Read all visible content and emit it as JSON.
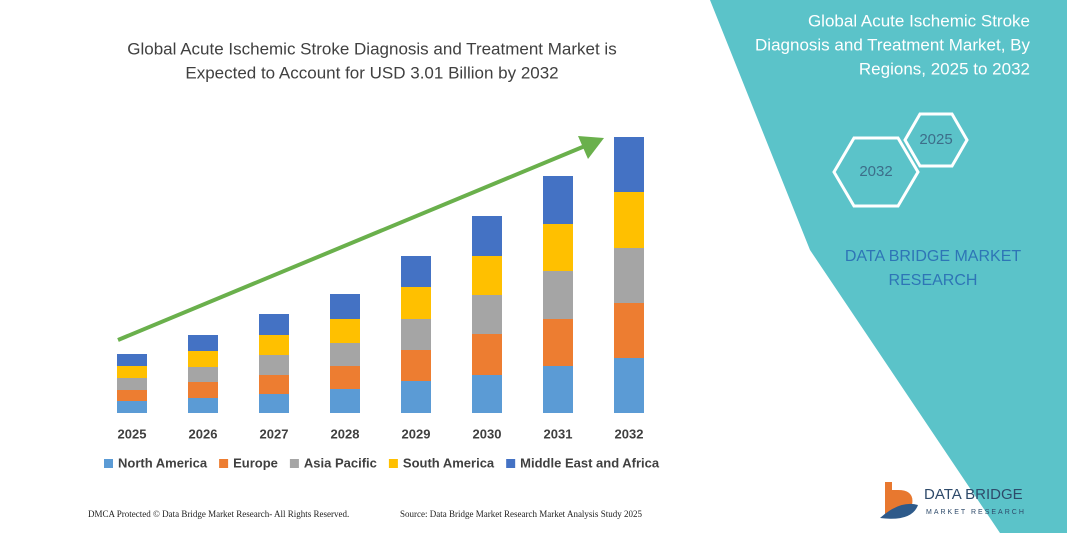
{
  "chart_data": {
    "type": "stacked-bar",
    "title": [
      "Global Acute Ischemic Stroke Diagnosis and Treatment Market is",
      "Expected to Account for USD 3.01 Billion by 2032"
    ],
    "categories": [
      "2025",
      "2026",
      "2027",
      "2028",
      "2029",
      "2030",
      "2031",
      "2032"
    ],
    "series": [
      {
        "name": "North America",
        "color": "#5b9bd5",
        "values": [
          12,
          15,
          19,
          24,
          32,
          38,
          47,
          55
        ]
      },
      {
        "name": "Europe",
        "color": "#ed7d31",
        "values": [
          11,
          16,
          19,
          23,
          31,
          41,
          47,
          55
        ]
      },
      {
        "name": "Asia Pacific",
        "color": "#a5a5a5",
        "values": [
          12,
          15,
          20,
          23,
          31,
          39,
          48,
          55
        ]
      },
      {
        "name": "South America",
        "color": "#ffc000",
        "values": [
          12,
          16,
          20,
          24,
          32,
          39,
          47,
          56
        ]
      },
      {
        "name": "Middle East and Africa",
        "color": "#4472c4",
        "values": [
          12,
          16,
          21,
          25,
          31,
          40,
          48,
          55
        ]
      }
    ]
  },
  "panel": {
    "title": [
      "Global Acute Ischemic Stroke",
      "Diagnosis and Treatment Market, By",
      "Regions, 2025 to 2032"
    ],
    "hexagons": [
      "2025",
      "2032"
    ],
    "brand": [
      "DATA BRIDGE MARKET",
      "RESEARCH"
    ]
  },
  "footer": {
    "left": "DMCA Protected © Data Bridge Market Research- All Rights Reserved.",
    "right": "Source: Data Bridge Market Research Market Analysis Study 2025"
  },
  "logo": {
    "name": "DATA BRIDGE",
    "tagline": "MARKET RESEARCH"
  }
}
